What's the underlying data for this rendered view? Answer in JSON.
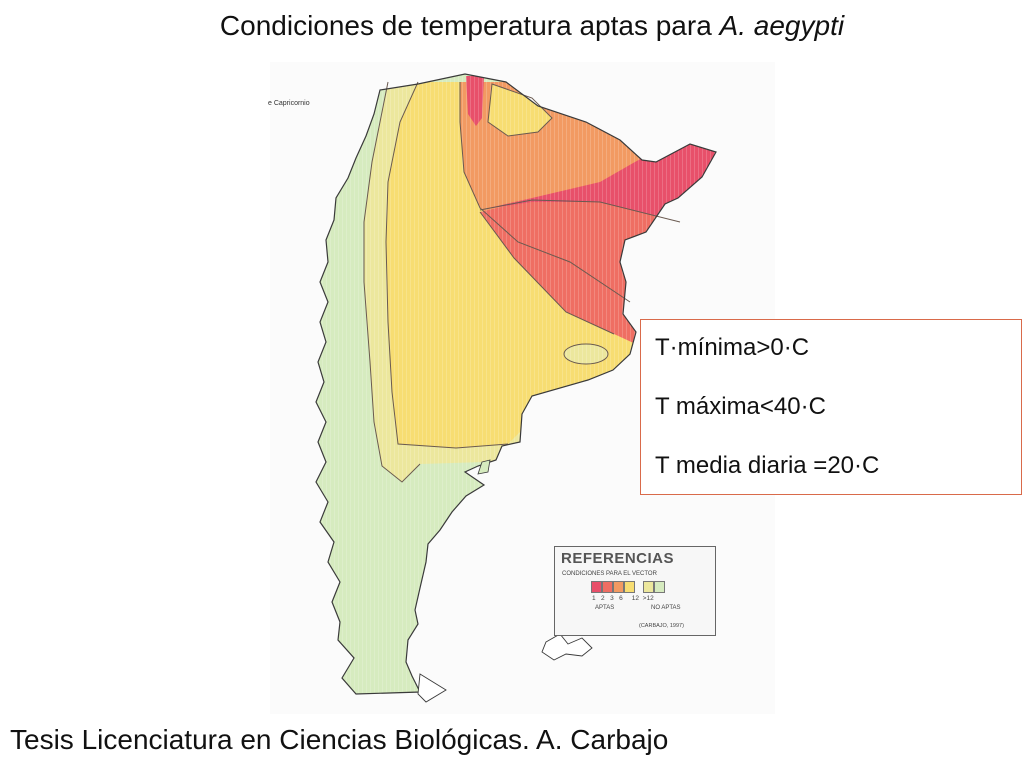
{
  "slide": {
    "title": {
      "text": "Condiciones de temperatura aptas para ",
      "species": "A. aegypti"
    },
    "footer": "Tesis Licenciatura en Ciencias Biológicas. A. Carbajo"
  },
  "map": {
    "tropic_label": "e Capricornio",
    "zone_colors": {
      "zone_1": "#e8506a",
      "zone_2": "#ef6e63",
      "zone_3": "#f29a62",
      "zone_6": "#f7dd72",
      "zone_12": "#ece79d",
      "zone_gt12": "#d6ebbf"
    },
    "legend": {
      "title": "REFERENCIAS",
      "subtitle": "CONDICIONES PARA EL VECTOR",
      "classes": [
        "1",
        "2",
        "3",
        "6",
        "12",
        ">12"
      ],
      "suitable_label": "APTAS",
      "unsuitable_label": "NO APTAS",
      "credit": "(CARBAJO, 1997)"
    }
  },
  "conditions": [
    "T·mínima>0·C",
    "T máxima<40·C",
    "T media diaria =20·C"
  ]
}
